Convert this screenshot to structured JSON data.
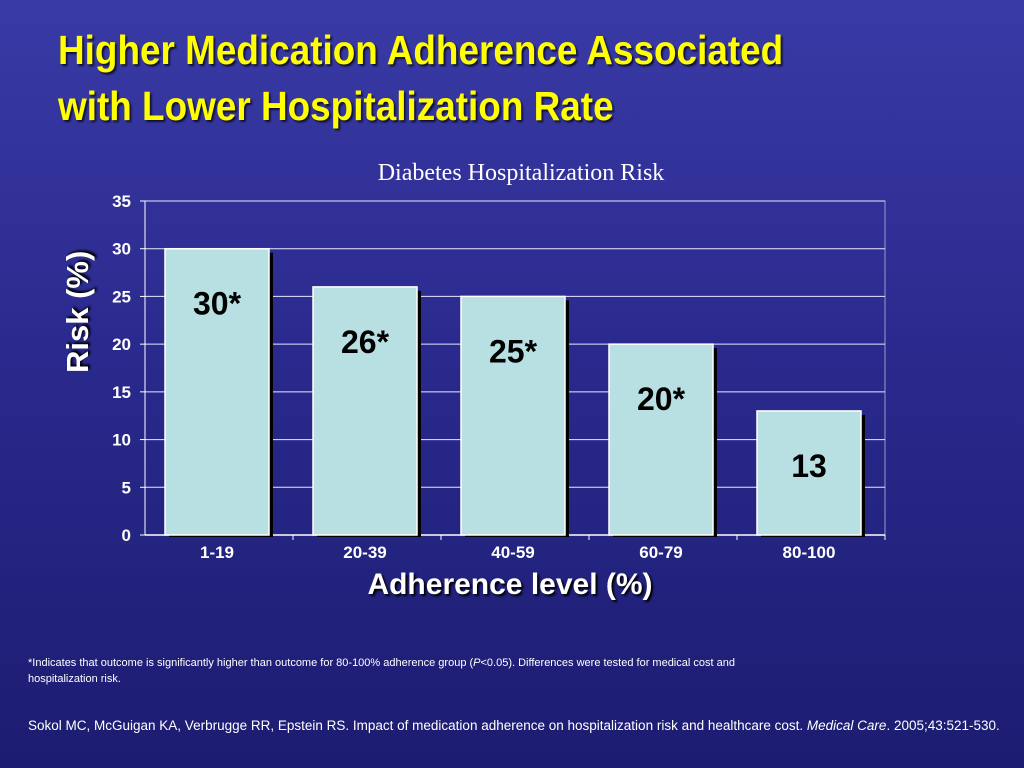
{
  "slide": {
    "title_line1": "Higher Medication Adherence Associated",
    "title_line2": "with Lower Hospitalization Rate",
    "footnote_pre": "*Indicates that outcome is significantly higher than outcome for 80-100% adherence group (",
    "footnote_p": "P",
    "footnote_post": "<0.05). Differences were tested for medical cost and hospitalization risk.",
    "citation_pre": "Sokol MC, McGuigan KA, Verbrugge RR, Epstein RS. Impact of medication adherence on hospitalization risk and healthcare cost. ",
    "citation_journal": "Medical Care",
    "citation_post": ". 2005;43:521-530."
  },
  "colors": {
    "bar_fill": "#b8e0e2",
    "title_yellow": "#ffff00",
    "background": "#2a2a8e"
  },
  "chart_data": {
    "type": "bar",
    "title": "Diabetes Hospitalization Risk",
    "xlabel": "Adherence level (%)",
    "ylabel": "Risk (%)",
    "categories": [
      "1-19",
      "20-39",
      "40-59",
      "60-79",
      "80-100"
    ],
    "values": [
      30,
      26,
      25,
      20,
      13
    ],
    "data_labels": [
      "30*",
      "26*",
      "25*",
      "20*",
      "13"
    ],
    "ylim": [
      0,
      35
    ],
    "yticks": [
      0,
      5,
      10,
      15,
      20,
      25,
      30,
      35
    ],
    "grid": true,
    "legend": "none"
  }
}
